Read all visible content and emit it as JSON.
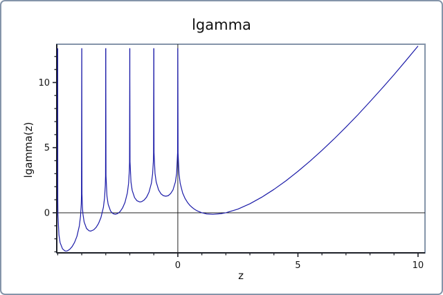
{
  "window": {
    "background": "#ffffff",
    "border_color": "#8494a9"
  },
  "chart_data": {
    "type": "line",
    "title": "lgamma",
    "xlabel": "z",
    "ylabel": "lgamma(z)",
    "xlim": [
      -5.04,
      10.29
    ],
    "ylim": [
      -3.08,
      12.94
    ],
    "grid": false,
    "legend": "none",
    "x_major_ticks": [
      {
        "value": 0,
        "label": "0"
      },
      {
        "value": 5,
        "label": "5"
      },
      {
        "value": 10,
        "label": "10"
      }
    ],
    "x_minor_ticks": [
      -5,
      -4,
      -3,
      -2,
      -1,
      1,
      2,
      3,
      4,
      6,
      7,
      8,
      9
    ],
    "y_major_ticks": [
      {
        "value": 0,
        "label": "0"
      },
      {
        "value": 5,
        "label": "5"
      },
      {
        "value": 10,
        "label": "10"
      }
    ],
    "y_minor_ticks": [
      -3,
      -2,
      -1,
      1,
      2,
      3,
      4,
      6,
      7,
      8,
      9,
      11,
      12
    ],
    "zero_line_x": 0,
    "zero_line_y": 0,
    "asymptotes_x": [
      -5,
      -4,
      -3,
      -2,
      -1,
      0
    ],
    "series": [
      {
        "name": "lgamma",
        "color": "#1b1ba8",
        "segments": [
          [
            [
              -5,
              12.63
            ],
            [
              -4.997,
              1.03
            ],
            [
              -4.99,
              -0.17
            ],
            [
              -4.95,
              -1.7
            ],
            [
              -4.9,
              -2.3
            ],
            [
              -4.8,
              -2.77
            ],
            [
              -4.7,
              -2.93
            ],
            [
              -4.66,
              -2.94
            ],
            [
              -4.6,
              -2.93
            ],
            [
              -4.5,
              -2.81
            ],
            [
              -4.4,
              -2.6
            ],
            [
              -4.3,
              -2.28
            ],
            [
              -4.2,
              -1.81
            ],
            [
              -4.1,
              -1.01
            ],
            [
              -4.05,
              -0.25
            ],
            [
              -4.02,
              0.7
            ],
            [
              -4.01,
              1.41
            ],
            [
              -4,
              12.63
            ]
          ],
          [
            [
              -4,
              12.63
            ],
            [
              -3.99,
              1.44
            ],
            [
              -3.97,
              0.37
            ],
            [
              -3.95,
              -0.1
            ],
            [
              -3.9,
              -0.71
            ],
            [
              -3.8,
              -1.21
            ],
            [
              -3.7,
              -1.38
            ],
            [
              -3.63,
              -1.41
            ],
            [
              -3.5,
              -1.31
            ],
            [
              -3.4,
              -1.12
            ],
            [
              -3.3,
              -0.82
            ],
            [
              -3.2,
              -0.37
            ],
            [
              -3.1,
              0.4
            ],
            [
              -3.05,
              1.14
            ],
            [
              -3.02,
              2.1
            ],
            [
              -3.01,
              2.8
            ],
            [
              -3,
              12.63
            ]
          ],
          [
            [
              -3,
              12.63
            ],
            [
              -2.99,
              2.83
            ],
            [
              -2.95,
              1.27
            ],
            [
              -2.9,
              0.65
            ],
            [
              -2.8,
              0.13
            ],
            [
              -2.7,
              -0.07
            ],
            [
              -2.6,
              -0.12
            ],
            [
              -2.5,
              -0.06
            ],
            [
              -2.4,
              0.1
            ],
            [
              -2.3,
              0.37
            ],
            [
              -2.2,
              0.79
            ],
            [
              -2.1,
              1.53
            ],
            [
              -2.05,
              2.26
            ],
            [
              -2.02,
              3.2
            ],
            [
              -2.01,
              3.9
            ],
            [
              -2,
              12.63
            ]
          ],
          [
            [
              -2,
              12.63
            ],
            [
              -1.99,
              3.92
            ],
            [
              -1.95,
              2.35
            ],
            [
              -1.9,
              1.72
            ],
            [
              -1.8,
              1.16
            ],
            [
              -1.7,
              0.92
            ],
            [
              -1.6,
              0.84
            ],
            [
              -1.57,
              0.83
            ],
            [
              -1.5,
              0.86
            ],
            [
              -1.4,
              0.98
            ],
            [
              -1.3,
              1.2
            ],
            [
              -1.2,
              1.58
            ],
            [
              -1.1,
              2.27
            ],
            [
              -1.05,
              2.98
            ],
            [
              -1.02,
              3.9
            ],
            [
              -1.01,
              4.6
            ],
            [
              -1,
              12.63
            ]
          ],
          [
            [
              -1,
              12.63
            ],
            [
              -0.99,
              4.61
            ],
            [
              -0.95,
              3.02
            ],
            [
              -0.9,
              2.36
            ],
            [
              -0.8,
              1.75
            ],
            [
              -0.7,
              1.45
            ],
            [
              -0.6,
              1.31
            ],
            [
              -0.5,
              1.27
            ],
            [
              -0.4,
              1.31
            ],
            [
              -0.3,
              1.47
            ],
            [
              -0.2,
              1.76
            ],
            [
              -0.1,
              2.37
            ],
            [
              -0.05,
              3.03
            ],
            [
              -0.01,
              4.61
            ],
            [
              0,
              12.63
            ]
          ],
          [
            [
              0,
              12.63
            ],
            [
              0.01,
              4.6
            ],
            [
              0.05,
              2.97
            ],
            [
              0.1,
              2.25
            ],
            [
              0.2,
              1.52
            ],
            [
              0.3,
              1.1
            ],
            [
              0.4,
              0.8
            ],
            [
              0.5,
              0.57
            ],
            [
              0.6,
              0.4
            ],
            [
              0.7,
              0.26
            ],
            [
              0.8,
              0.15
            ],
            [
              0.9,
              0.07
            ],
            [
              1,
              0
            ],
            [
              1.2,
              -0.09
            ],
            [
              1.46,
              -0.12
            ],
            [
              1.8,
              -0.07
            ],
            [
              2,
              0
            ],
            [
              2.5,
              0.28
            ],
            [
              3,
              0.69
            ],
            [
              3.5,
              1.2
            ],
            [
              4,
              1.79
            ],
            [
              4.5,
              2.45
            ],
            [
              5,
              3.18
            ],
            [
              5.5,
              3.96
            ],
            [
              6,
              4.79
            ],
            [
              6.5,
              5.66
            ],
            [
              7,
              6.58
            ],
            [
              7.5,
              7.53
            ],
            [
              8,
              8.53
            ],
            [
              8.5,
              9.55
            ],
            [
              9,
              10.6
            ],
            [
              9.5,
              11.69
            ],
            [
              10,
              12.8
            ]
          ]
        ]
      }
    ],
    "style": {
      "frame_color": "#8494a9",
      "axis_color": "#1c1f27",
      "tick_color": "#1c1f27",
      "zero_line_color": "#222222",
      "text_color": "#111111"
    }
  }
}
